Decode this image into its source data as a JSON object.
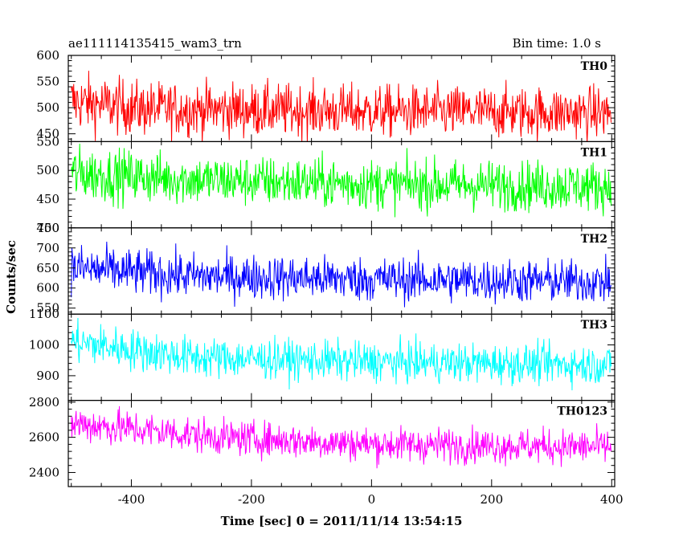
{
  "chart_data": {
    "type": "line",
    "title": "ae111114135415_wam3_trn",
    "subtitle": "Bin time: 1.0 s",
    "xlabel": "Time [sec] 0 = 2011/11/14 13:54:15",
    "ylabel": "Counts/sec",
    "xlim": [
      -505,
      405
    ],
    "x_ticks": [
      -400,
      -200,
      0,
      200,
      400
    ],
    "bin_time_s": 1.0,
    "grid": false,
    "panels": [
      {
        "name": "TH0",
        "color": "#ff0000",
        "ylim": [
          435,
          600
        ],
        "y_ticks": [
          450,
          500,
          550,
          600
        ],
        "segments": [
          {
            "x": -500,
            "mean": 512,
            "noise": 28
          },
          {
            "x": -380,
            "mean": 498,
            "noise": 26
          },
          {
            "x": 0,
            "mean": 493,
            "noise": 25
          },
          {
            "x": 400,
            "mean": 490,
            "noise": 25
          }
        ]
      },
      {
        "name": "TH1",
        "color": "#00ff00",
        "ylim": [
          400,
          550
        ],
        "y_ticks": [
          400,
          450,
          500,
          550
        ],
        "segments": [
          {
            "x": -500,
            "mean": 495,
            "noise": 24
          },
          {
            "x": -300,
            "mean": 484,
            "noise": 22
          },
          {
            "x": 0,
            "mean": 476,
            "noise": 22
          },
          {
            "x": 400,
            "mean": 472,
            "noise": 22
          }
        ]
      },
      {
        "name": "TH2",
        "color": "#0000ff",
        "ylim": [
          535,
          750
        ],
        "y_ticks": [
          550,
          600,
          650,
          700,
          750
        ],
        "segments": [
          {
            "x": -500,
            "mean": 650,
            "noise": 30
          },
          {
            "x": -300,
            "mean": 630,
            "noise": 28
          },
          {
            "x": 0,
            "mean": 622,
            "noise": 28
          },
          {
            "x": 400,
            "mean": 615,
            "noise": 27
          }
        ]
      },
      {
        "name": "TH3",
        "color": "#00ffff",
        "ylim": [
          820,
          1100
        ],
        "y_ticks": [
          900,
          1000,
          1100
        ],
        "segments": [
          {
            "x": -500,
            "mean": 1010,
            "noise": 35
          },
          {
            "x": -300,
            "mean": 960,
            "noise": 33
          },
          {
            "x": 0,
            "mean": 945,
            "noise": 32
          },
          {
            "x": 400,
            "mean": 935,
            "noise": 32
          }
        ]
      },
      {
        "name": "TH0123",
        "color": "#ff00ff",
        "ylim": [
          2320,
          2810
        ],
        "y_ticks": [
          2400,
          2600,
          2800
        ],
        "segments": [
          {
            "x": -500,
            "mean": 2680,
            "noise": 55
          },
          {
            "x": -250,
            "mean": 2600,
            "noise": 50
          },
          {
            "x": 0,
            "mean": 2560,
            "noise": 50
          },
          {
            "x": 400,
            "mean": 2545,
            "noise": 50
          }
        ]
      }
    ]
  }
}
